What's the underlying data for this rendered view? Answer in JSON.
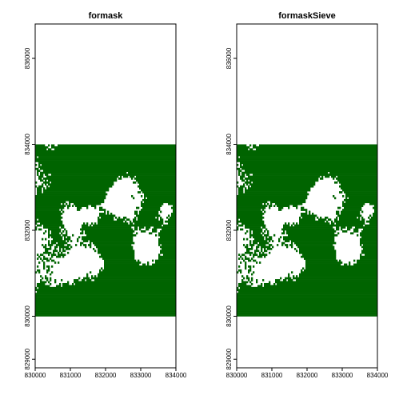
{
  "chart_data": [
    {
      "type": "heatmap",
      "title": "formask",
      "xlim": [
        830000,
        834000
      ],
      "ylim": [
        828800,
        836800
      ],
      "raster_extent": {
        "x": [
          830000,
          834000
        ],
        "y": [
          830000,
          834000
        ]
      },
      "x_ticks": [
        "830000",
        "831000",
        "832000",
        "833000",
        "834000"
      ],
      "x_tick_values": [
        830000,
        831000,
        832000,
        833000,
        834000
      ],
      "y_ticks": [
        "829000",
        "830000",
        "832000",
        "834000",
        "836000"
      ],
      "y_tick_values": [
        829000,
        830000,
        832000,
        834000,
        836000
      ],
      "fill_color": "#006400",
      "background_color": "#ffffff",
      "legend": "none",
      "grid": false
    },
    {
      "type": "heatmap",
      "title": "formaskSieve",
      "xlim": [
        830000,
        834000
      ],
      "ylim": [
        828800,
        836800
      ],
      "raster_extent": {
        "x": [
          830000,
          834000
        ],
        "y": [
          830000,
          834000
        ]
      },
      "x_ticks": [
        "830000",
        "831000",
        "832000",
        "833000",
        "834000"
      ],
      "x_tick_values": [
        830000,
        831000,
        832000,
        833000,
        834000
      ],
      "y_ticks": [
        "829000",
        "830000",
        "832000",
        "834000",
        "836000"
      ],
      "y_tick_values": [
        829000,
        830000,
        832000,
        834000,
        836000
      ],
      "fill_color": "#006400",
      "background_color": "#ffffff",
      "legend": "none",
      "grid": false
    }
  ]
}
